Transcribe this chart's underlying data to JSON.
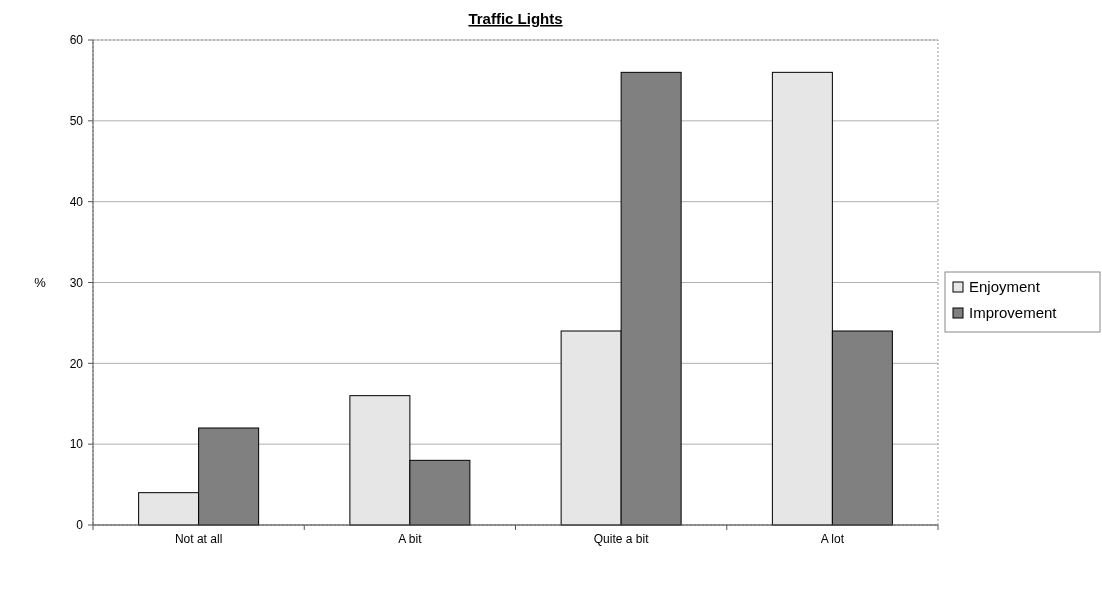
{
  "chart_data": {
    "type": "bar",
    "title": "Traffic Lights",
    "ylabel": "%",
    "categories": [
      "Not at all",
      "A bit",
      "Quite a bit",
      "A lot"
    ],
    "series": [
      {
        "name": "Enjoyment",
        "color": "#e6e6e6",
        "values": [
          4,
          16,
          24,
          56
        ]
      },
      {
        "name": "Improvement",
        "color": "#808080",
        "values": [
          12,
          8,
          56,
          24
        ]
      }
    ],
    "ylim": [
      0,
      60
    ],
    "yticks": [
      0,
      10,
      20,
      30,
      40,
      50,
      60
    ],
    "grid": "y",
    "legend": "right"
  }
}
